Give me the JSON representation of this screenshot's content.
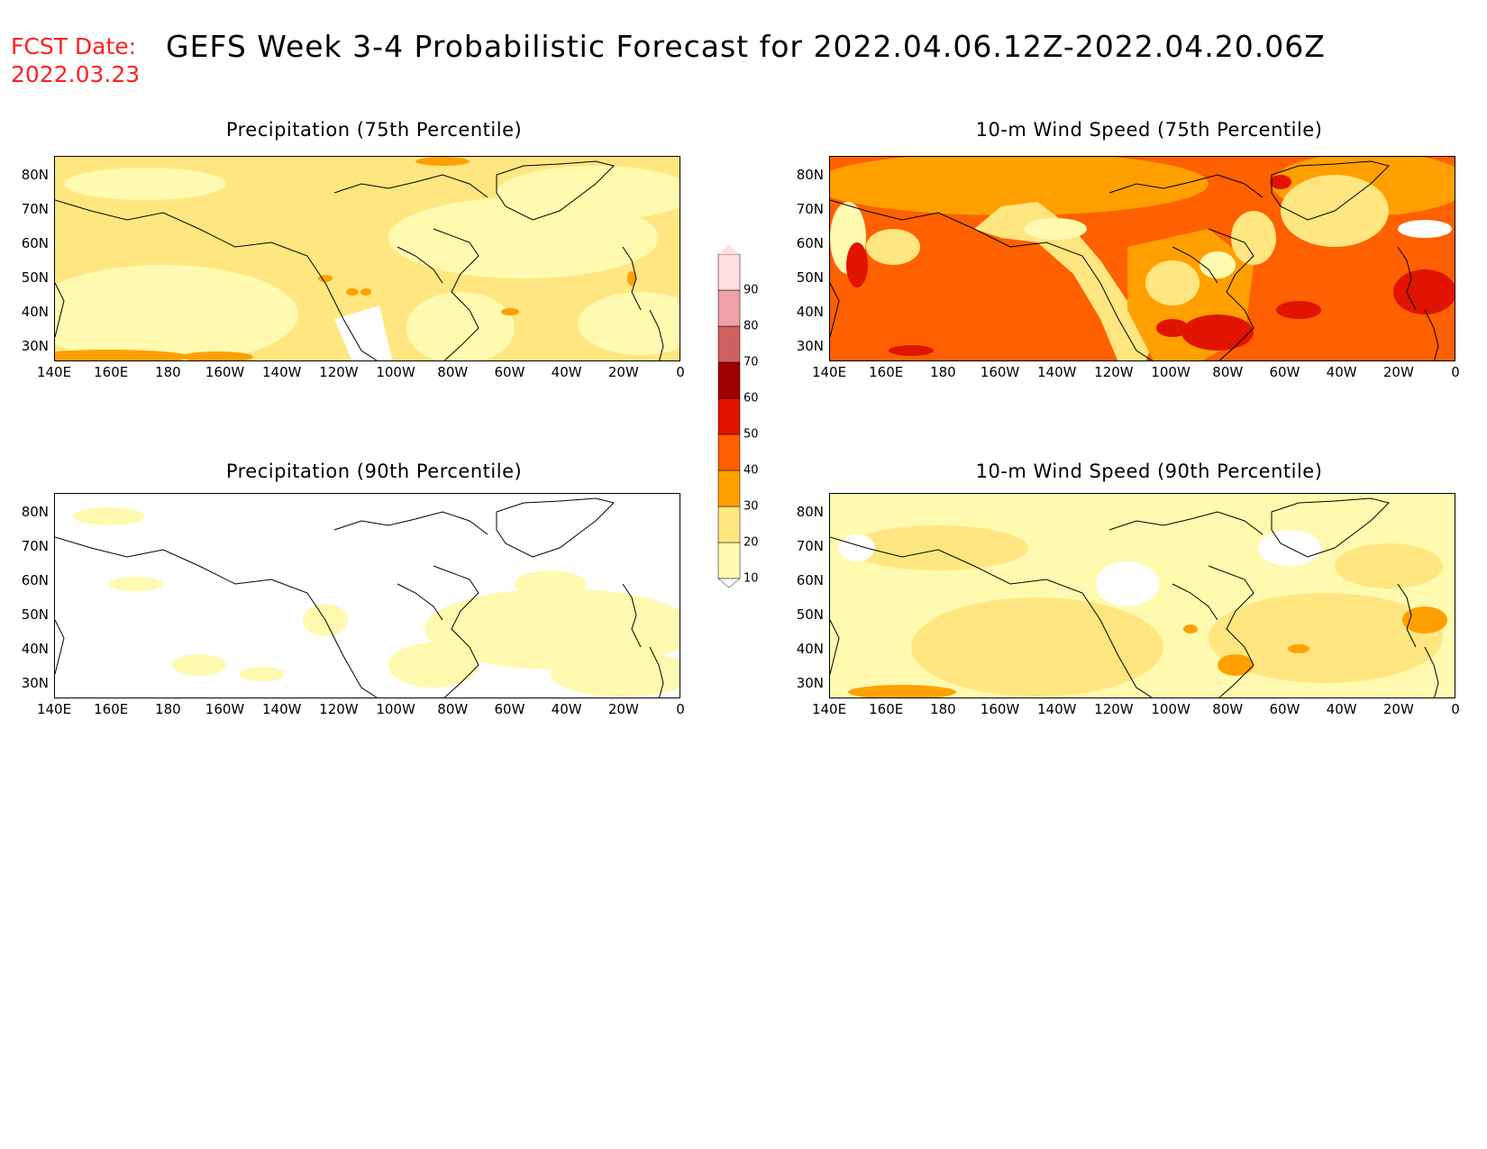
{
  "header": {
    "fcst_label": "FCST Date:",
    "fcst_date": "2022.03.23",
    "title": "GEFS Week 3-4 Probabilistic Forecast for 2022.04.06.12Z-2022.04.20.06Z"
  },
  "axes": {
    "lat_labels": [
      "80N",
      "70N",
      "60N",
      "50N",
      "40N",
      "30N"
    ],
    "lon_labels": [
      "140E",
      "160E",
      "180",
      "160W",
      "140W",
      "120W",
      "100W",
      "80W",
      "60W",
      "40W",
      "20W",
      "0"
    ]
  },
  "panels": [
    {
      "title": "Precipitation (75th Percentile)",
      "pattern": "precip75"
    },
    {
      "title": "10-m Wind Speed (75th Percentile)",
      "pattern": "wind75"
    },
    {
      "title": "Precipitation (90th Percentile)",
      "pattern": "precip90"
    },
    {
      "title": "10-m Wind Speed (90th Percentile)",
      "pattern": "wind90"
    }
  ],
  "colorbar": {
    "levels": [
      "10",
      "20",
      "30",
      "40",
      "50",
      "60",
      "70",
      "80",
      "90"
    ],
    "colors": [
      "#fffaaf",
      "#ffe680",
      "#ffa000",
      "#ff6000",
      "#e01400",
      "#a00000",
      "#d06060",
      "#f0a0a8",
      "#ffdde0"
    ]
  }
}
